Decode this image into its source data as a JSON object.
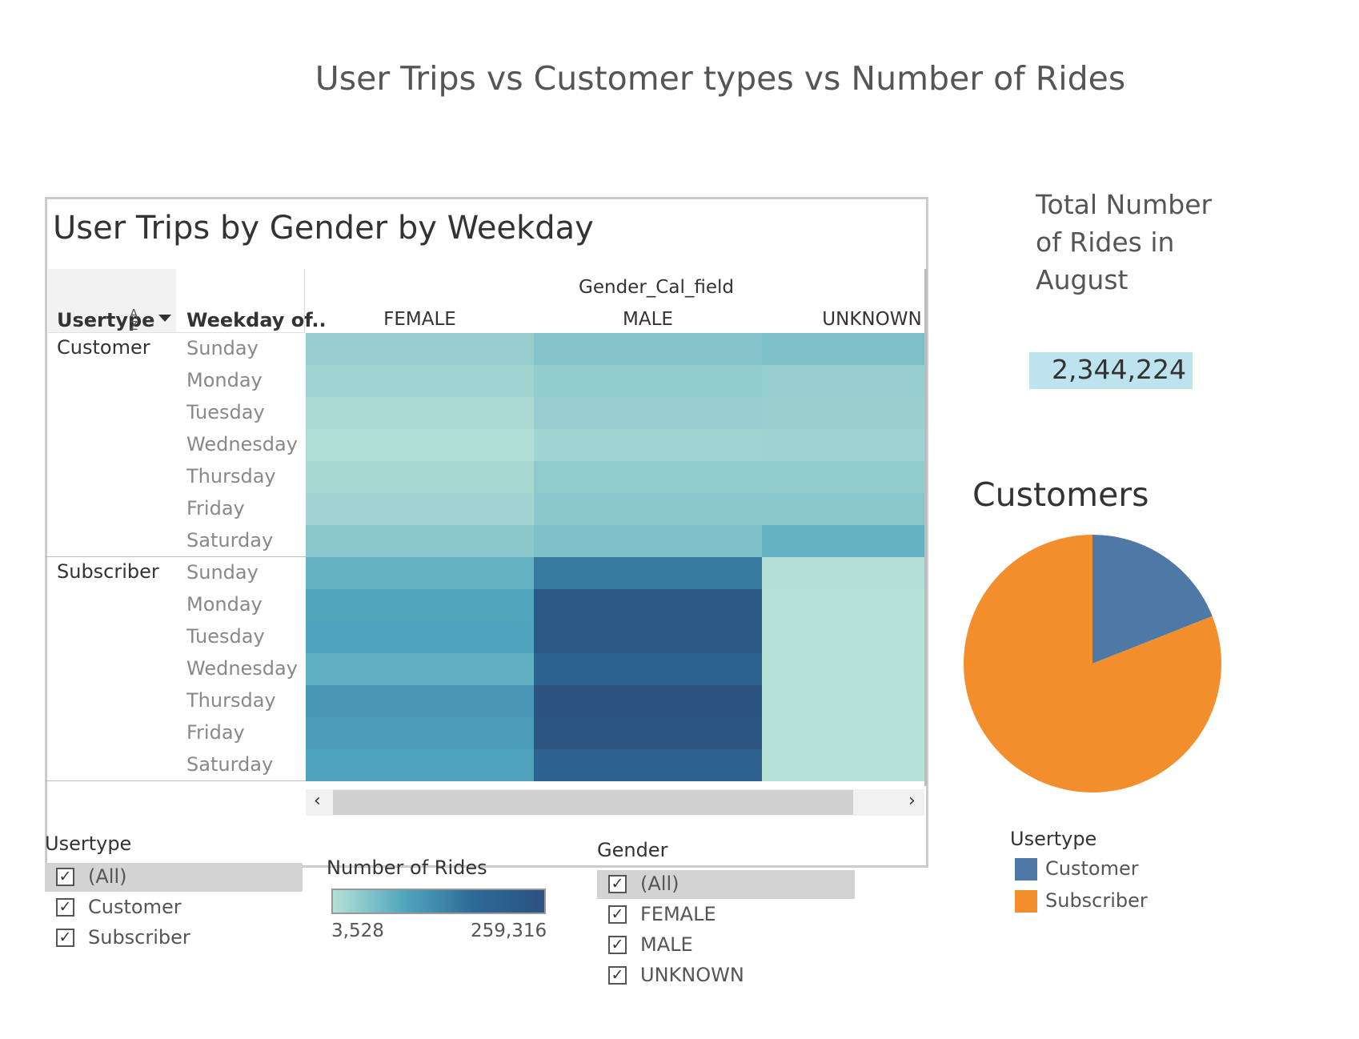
{
  "dashboard": {
    "title": "User Trips vs Customer types vs Number of Rides"
  },
  "heatmap": {
    "title": "User Trips by Gender by Weekday",
    "row_header_usertype": "Usertype",
    "row_header_weekday": "Weekday of..",
    "column_field": "Gender_Cal_field",
    "columns": [
      "FEMALE",
      "MALE",
      "UNKNOWN"
    ],
    "groups": [
      {
        "label": "Customer",
        "days": [
          "Sunday",
          "Monday",
          "Tuesday",
          "Wednesday",
          "Thursday",
          "Friday",
          "Saturday"
        ]
      },
      {
        "label": "Subscriber",
        "days": [
          "Sunday",
          "Monday",
          "Tuesday",
          "Wednesday",
          "Thursday",
          "Friday",
          "Saturday"
        ]
      }
    ]
  },
  "chart_data": [
    {
      "type": "heatmap",
      "title": "User Trips by Gender by Weekday",
      "x_field": "Gender_Cal_field",
      "columns": [
        "FEMALE",
        "MALE",
        "UNKNOWN"
      ],
      "rows": [
        "Customer|Sunday",
        "Customer|Monday",
        "Customer|Tuesday",
        "Customer|Wednesday",
        "Customer|Thursday",
        "Customer|Friday",
        "Customer|Saturday",
        "Subscriber|Sunday",
        "Subscriber|Monday",
        "Subscriber|Tuesday",
        "Subscriber|Wednesday",
        "Subscriber|Thursday",
        "Subscriber|Friday",
        "Subscriber|Saturday"
      ],
      "values": [
        [
          30000,
          46000,
          52000
        ],
        [
          22000,
          34000,
          30000
        ],
        [
          12000,
          30000,
          28000
        ],
        [
          8000,
          22000,
          24000
        ],
        [
          16000,
          36000,
          34000
        ],
        [
          20000,
          40000,
          42000
        ],
        [
          40000,
          52000,
          72000
        ],
        [
          72000,
          150000,
          5000
        ],
        [
          92000,
          232000,
          4200
        ],
        [
          94000,
          232000,
          4000
        ],
        [
          76000,
          200000,
          3900
        ],
        [
          112000,
          259316,
          4000
        ],
        [
          104000,
          250000,
          3700
        ],
        [
          96000,
          205000,
          3528
        ]
      ],
      "color_legend_title": "Number of Rides",
      "color_range": [
        3528,
        259316
      ]
    },
    {
      "type": "pie",
      "title": "Customers",
      "legend_title": "Usertype",
      "labels": [
        "Customer",
        "Subscriber"
      ],
      "values": [
        0.19,
        0.81
      ],
      "colors": [
        "#4e79a7",
        "#f28e2b"
      ]
    }
  ],
  "filters": {
    "usertype": {
      "title": "Usertype",
      "items": [
        "(All)",
        "Customer",
        "Subscriber"
      ]
    },
    "gender": {
      "title": "Gender",
      "items": [
        "(All)",
        "FEMALE",
        "MALE",
        "UNKNOWN"
      ]
    }
  },
  "color_legend": {
    "title": "Number of Rides",
    "min_label": "3,528",
    "max_label": "259,316"
  },
  "kpi": {
    "label": "Total Number of Rides in August",
    "value": "2,344,224"
  },
  "pie": {
    "title": "Customers",
    "legend_title": "Usertype",
    "legend": [
      {
        "label": "Customer",
        "color": "#4e79a7"
      },
      {
        "label": "Subscriber",
        "color": "#f28e2b"
      }
    ]
  },
  "icons": {
    "check": "✓",
    "sort": "sort-icon",
    "dropdown": "dropdown-icon",
    "scroll_left": "‹",
    "scroll_right": "›"
  }
}
